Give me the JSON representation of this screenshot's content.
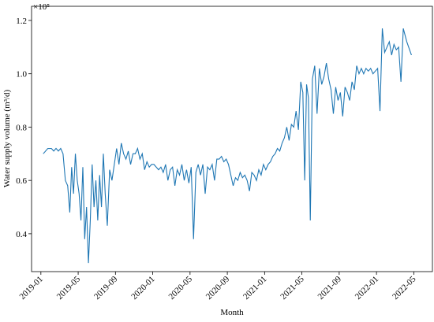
{
  "chart_data": {
    "type": "line",
    "y_label": "Water supply volume (m³/d)",
    "x_label": "Month",
    "offset_text": "×10⁵",
    "color": "#1f77b4",
    "xlim": [
      "2018-12",
      "2022-07"
    ],
    "xticks": [
      "2019-01",
      "2019-05",
      "2019-09",
      "2020-01",
      "2020-05",
      "2020-09",
      "2021-01",
      "2021-05",
      "2021-09",
      "2022-01",
      "2022-05"
    ],
    "ylim": [
      0.258,
      1.253
    ],
    "yticks": [
      0.4,
      0.6,
      0.8,
      {
        "value": 1,
        "label": "1.0"
      },
      1.2
    ],
    "x": [
      "2019-01",
      "2019-01",
      "2019-02",
      "2019-02",
      "2019-02",
      "2019-02",
      "2019-03",
      "2019-03",
      "2019-03",
      "2019-03",
      "2019-04",
      "2019-04",
      "2019-04",
      "2019-04",
      "2019-04",
      "2019-05",
      "2019-05",
      "2019-05",
      "2019-05",
      "2019-05",
      "2019-06",
      "2019-06",
      "2019-06",
      "2019-06",
      "2019-06",
      "2019-07",
      "2019-07",
      "2019-07",
      "2019-07",
      "2019-07",
      "2019-08",
      "2019-08",
      "2019-08",
      "2019-08",
      "2019-09",
      "2019-09",
      "2019-09",
      "2019-09",
      "2019-10",
      "2019-10",
      "2019-10",
      "2019-10",
      "2019-11",
      "2019-11",
      "2019-11",
      "2019-11",
      "2019-12",
      "2019-12",
      "2019-12",
      "2019-12",
      "2020-01",
      "2020-01",
      "2020-01",
      "2020-01",
      "2020-02",
      "2020-02",
      "2020-02",
      "2020-02",
      "2020-03",
      "2020-03",
      "2020-03",
      "2020-03",
      "2020-04",
      "2020-04",
      "2020-04",
      "2020-04",
      "2020-05",
      "2020-05",
      "2020-05",
      "2020-05",
      "2020-06",
      "2020-06",
      "2020-06",
      "2020-06",
      "2020-07",
      "2020-07",
      "2020-07",
      "2020-07",
      "2020-08",
      "2020-08",
      "2020-08",
      "2020-08",
      "2020-09",
      "2020-09",
      "2020-09",
      "2020-09",
      "2020-10",
      "2020-10",
      "2020-10",
      "2020-10",
      "2020-11",
      "2020-11",
      "2020-11",
      "2020-11",
      "2020-12",
      "2020-12",
      "2020-12",
      "2020-12",
      "2021-01",
      "2021-01",
      "2021-01",
      "2021-01",
      "2021-02",
      "2021-02",
      "2021-02",
      "2021-02",
      "2021-03",
      "2021-03",
      "2021-03",
      "2021-03",
      "2021-04",
      "2021-04",
      "2021-04",
      "2021-04",
      "2021-05",
      "2021-05",
      "2021-05",
      "2021-05",
      "2021-05",
      "2021-06",
      "2021-06",
      "2021-06",
      "2021-06",
      "2021-07",
      "2021-07",
      "2021-07",
      "2021-07",
      "2021-08",
      "2021-08",
      "2021-08",
      "2021-08",
      "2021-09",
      "2021-09",
      "2021-09",
      "2021-09",
      "2021-10",
      "2021-10",
      "2021-10",
      "2021-10",
      "2021-11",
      "2021-11",
      "2021-11",
      "2021-11",
      "2021-12",
      "2021-12",
      "2021-12",
      "2021-12",
      "2022-01",
      "2022-01",
      "2022-01",
      "2022-01",
      "2022-02",
      "2022-02",
      "2022-02",
      "2022-02",
      "2022-03",
      "2022-03",
      "2022-03",
      "2022-03",
      "2022-04",
      "2022-04"
    ],
    "values": [
      0.7,
      0.72,
      0.72,
      0.71,
      0.72,
      0.71,
      0.72,
      0.7,
      0.6,
      0.58,
      0.48,
      0.65,
      0.55,
      0.7,
      0.6,
      0.55,
      0.45,
      0.65,
      0.38,
      0.5,
      0.29,
      0.45,
      0.66,
      0.5,
      0.6,
      0.45,
      0.62,
      0.5,
      0.7,
      0.55,
      0.43,
      0.64,
      0.6,
      0.66,
      0.72,
      0.66,
      0.74,
      0.7,
      0.68,
      0.71,
      0.66,
      0.7,
      0.7,
      0.72,
      0.68,
      0.7,
      0.64,
      0.67,
      0.65,
      0.66,
      0.66,
      0.65,
      0.64,
      0.65,
      0.63,
      0.66,
      0.6,
      0.64,
      0.65,
      0.58,
      0.64,
      0.62,
      0.66,
      0.6,
      0.64,
      0.59,
      0.65,
      0.38,
      0.63,
      0.66,
      0.62,
      0.66,
      0.55,
      0.65,
      0.64,
      0.66,
      0.6,
      0.68,
      0.68,
      0.69,
      0.67,
      0.68,
      0.66,
      0.62,
      0.58,
      0.61,
      0.6,
      0.63,
      0.61,
      0.62,
      0.6,
      0.56,
      0.63,
      0.62,
      0.6,
      0.64,
      0.62,
      0.66,
      0.64,
      0.66,
      0.67,
      0.69,
      0.7,
      0.72,
      0.71,
      0.74,
      0.76,
      0.8,
      0.75,
      0.81,
      0.8,
      0.86,
      0.79,
      0.97,
      0.93,
      0.6,
      0.96,
      0.91,
      0.45,
      0.98,
      1.03,
      0.85,
      1.02,
      0.96,
      0.99,
      1.04,
      0.98,
      0.94,
      0.85,
      0.95,
      0.9,
      0.93,
      0.84,
      0.95,
      0.93,
      0.9,
      0.97,
      0.94,
      1.03,
      1.0,
      1.02,
      1.0,
      1.02,
      1.01,
      1.02,
      1.0,
      1.01,
      1.02,
      0.86,
      1.17,
      1.08,
      1.1,
      1.12,
      1.07,
      1.11,
      1.09,
      1.1,
      0.97,
      1.17,
      1.12,
      1.07
    ]
  }
}
